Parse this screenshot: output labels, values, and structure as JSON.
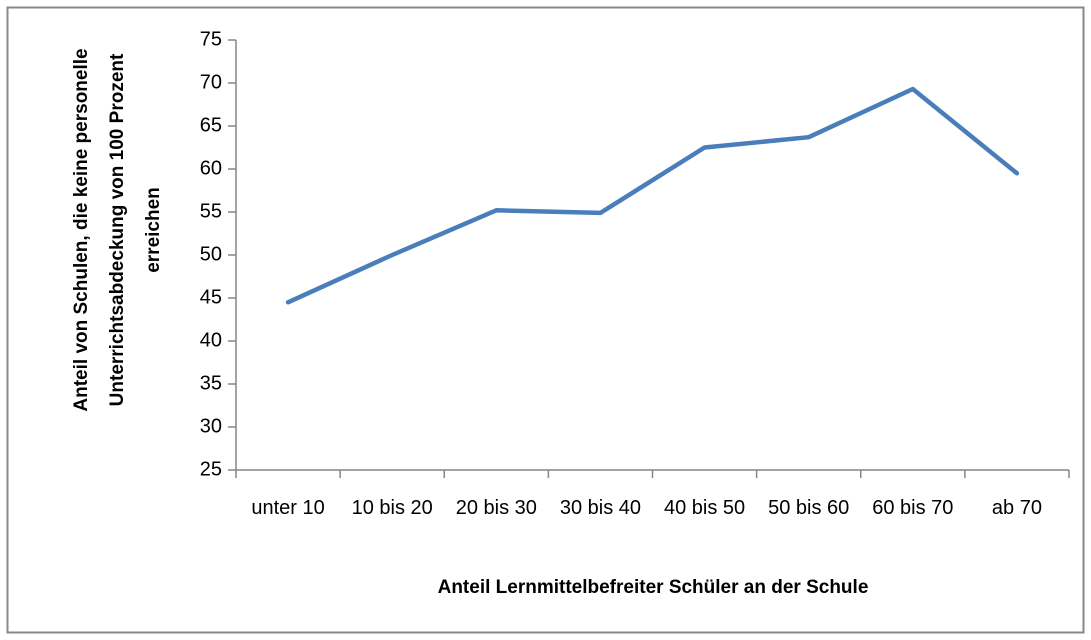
{
  "chart_data": {
    "type": "line",
    "y_label": "Anteil von Schulen, die keine personelle Unterrichtsabdeckung von 100 Prozent erreichen",
    "x_label": "Anteil Lernmittelbefreiter Schüler an der Schule",
    "categories": [
      "unter 10",
      "10 bis 20",
      "20 bis 30",
      "30 bis 40",
      "40 bis 50",
      "50 bis 60",
      "60 bis 70",
      "ab 70"
    ],
    "series": [
      {
        "color": "#4a7ebb",
        "values": [
          44.5,
          50,
          55.2,
          54.9,
          62.5,
          63.7,
          69.3,
          59.5
        ]
      }
    ],
    "ylim": [
      25,
      75
    ],
    "yticks": [
      25,
      30,
      35,
      40,
      45,
      50,
      55,
      60,
      65,
      70,
      75
    ],
    "grid": false
  }
}
